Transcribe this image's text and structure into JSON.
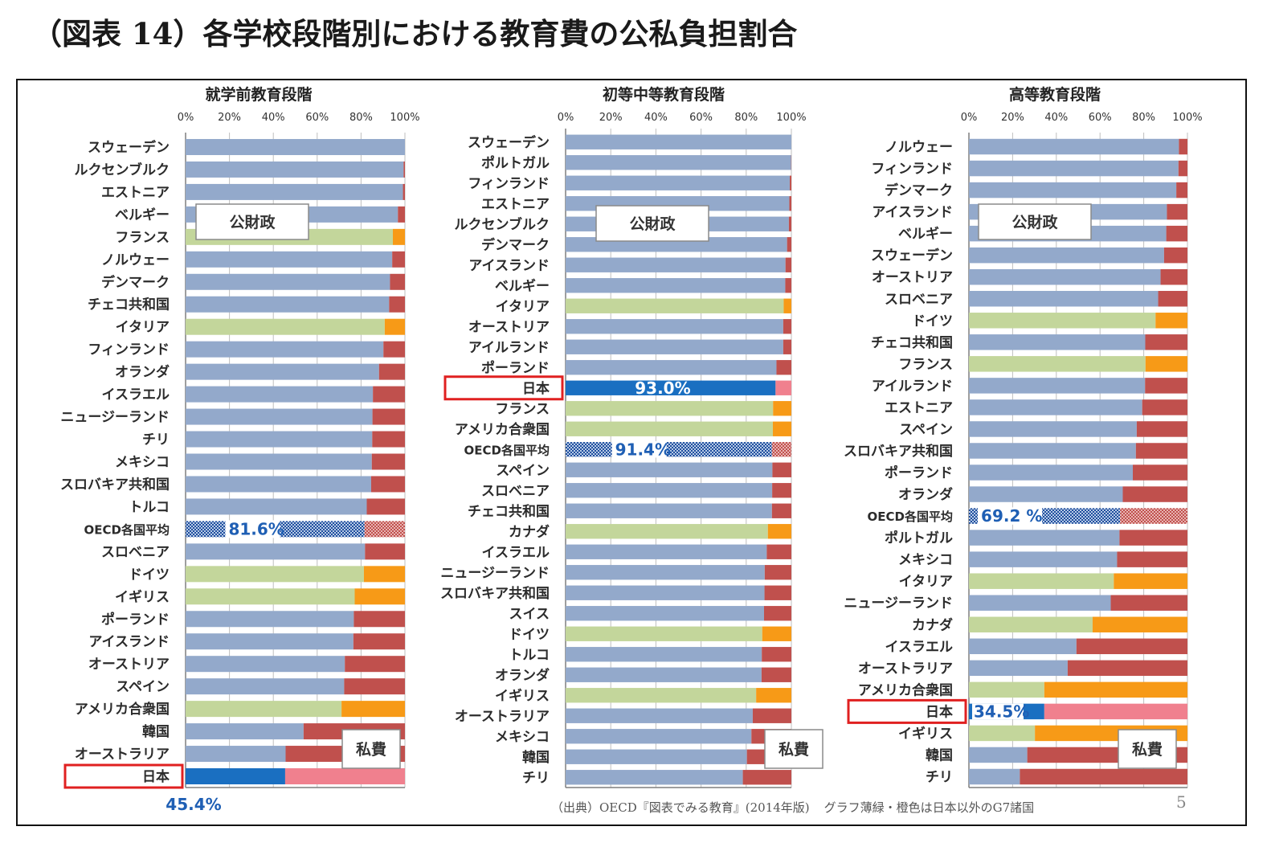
{
  "page_title": "（図表 14）各学校段階別における教育費の公私負担割合",
  "source_note": "（出典）OECD『図表でみる教育』(2014年版)",
  "color_note": "グラフ薄緑・橙色は日本以外のG7諸国",
  "page_number": "5",
  "colors": {
    "public": "#93a9cb",
    "private": "#c0504d",
    "g7_public": "#c3d69b",
    "g7_private": "#f79a17",
    "japan_public": "#1a6fc1",
    "japan_private": "#f0808e",
    "oecd_dots": "#1f4e9e",
    "label_blue": "#1f5fb4",
    "highlight": "#e02020"
  },
  "chart_data": [
    {
      "type": "bar",
      "orientation": "horizontal",
      "stacked": true,
      "title": "就学前教育段階",
      "xlim": [
        0,
        100
      ],
      "xticks": [
        "0%",
        "20%",
        "40%",
        "60%",
        "80%",
        "100%"
      ],
      "public_label": "公財政",
      "private_label": "私費",
      "categories": [
        "スウェーデン",
        "ルクセンブルク",
        "エストニア",
        "ベルギー",
        "フランス",
        "ノルウェー",
        "デンマーク",
        "チェコ共和国",
        "イタリア",
        "フィンランド",
        "オランダ",
        "イスラエル",
        "ニュージーランド",
        "チリ",
        "メキシコ",
        "スロバキア共和国",
        "トルコ",
        "OECD各国平均",
        "スロベニア",
        "ドイツ",
        "イギリス",
        "ポーランド",
        "アイスランド",
        "オーストリア",
        "スペイン",
        "アメリカ合衆国",
        "韓国",
        "オーストラリア",
        "日本"
      ],
      "series": [
        {
          "name": "公財政",
          "values": [
            100,
            99.4,
            99.1,
            96.8,
            94.5,
            94.2,
            93.2,
            92.8,
            90.8,
            90.2,
            88.2,
            85.4,
            85.2,
            85.1,
            84.9,
            84.6,
            82.6,
            81.6,
            81.8,
            81.3,
            77.1,
            76.7,
            76.5,
            72.6,
            72.3,
            71.1,
            53.8,
            45.6,
            45.4
          ]
        },
        {
          "name": "私費",
          "values": [
            0,
            0.6,
            0.9,
            3.2,
            5.5,
            5.8,
            6.8,
            7.2,
            9.2,
            9.8,
            11.8,
            14.6,
            14.8,
            14.9,
            15.1,
            15.4,
            17.4,
            18.4,
            18.2,
            18.7,
            22.9,
            23.3,
            23.5,
            27.4,
            27.7,
            28.9,
            46.2,
            54.4,
            54.6
          ]
        }
      ],
      "g7": [
        "フランス",
        "イタリア",
        "ドイツ",
        "イギリス",
        "アメリカ合衆国"
      ],
      "highlight": {
        "category": "日本",
        "label": "45.4%"
      },
      "oecd_average": {
        "category": "OECD各国平均",
        "label": "81.6%"
      }
    },
    {
      "type": "bar",
      "orientation": "horizontal",
      "stacked": true,
      "title": "初等中等教育段階",
      "xlim": [
        0,
        100
      ],
      "xticks": [
        "0%",
        "20%",
        "40%",
        "60%",
        "80%",
        "100%"
      ],
      "public_label": "公財政",
      "private_label": "私費",
      "categories": [
        "スウェーデン",
        "ポルトガル",
        "フィンランド",
        "エストニア",
        "ルクセンブルク",
        "デンマーク",
        "アイスランド",
        "ベルギー",
        "イタリア",
        "オーストリア",
        "アイルランド",
        "ポーランド",
        "日本",
        "フランス",
        "アメリカ合衆国",
        "OECD各国平均",
        "スペイン",
        "スロベニア",
        "チェコ共和国",
        "カナダ",
        "イスラエル",
        "ニュージーランド",
        "スロバキア共和国",
        "スイス",
        "ドイツ",
        "トルコ",
        "オランダ",
        "イギリス",
        "オーストラリア",
        "メキシコ",
        "韓国",
        "チリ"
      ],
      "series": [
        {
          "name": "公財政",
          "values": [
            100,
            99.9,
            99.3,
            99.1,
            98.9,
            98.1,
            97.4,
            97.3,
            96.6,
            96.4,
            96.4,
            93.4,
            93.0,
            91.9,
            91.8,
            91.4,
            91.6,
            91.5,
            91.4,
            89.6,
            89.1,
            88.2,
            88.1,
            87.9,
            87.1,
            86.9,
            86.8,
            84.4,
            82.9,
            82.3,
            80.3,
            78.5
          ]
        },
        {
          "name": "私費",
          "values": [
            0,
            0.1,
            0.7,
            0.9,
            1.1,
            1.9,
            2.6,
            2.7,
            3.4,
            3.6,
            3.6,
            6.6,
            7.0,
            8.1,
            8.2,
            8.6,
            8.4,
            8.5,
            8.6,
            10.4,
            10.9,
            11.8,
            11.9,
            12.1,
            12.9,
            13.1,
            13.2,
            15.6,
            17.1,
            17.7,
            19.7,
            21.5
          ]
        }
      ],
      "g7": [
        "イタリア",
        "フランス",
        "アメリカ合衆国",
        "カナダ",
        "ドイツ",
        "イギリス"
      ],
      "highlight": {
        "category": "日本",
        "label": "93.0%"
      },
      "oecd_average": {
        "category": "OECD各国平均",
        "label": "91.4%"
      }
    },
    {
      "type": "bar",
      "orientation": "horizontal",
      "stacked": true,
      "title": "高等教育段階",
      "xlim": [
        0,
        100
      ],
      "xticks": [
        "0%",
        "20%",
        "40%",
        "60%",
        "80%",
        "100%"
      ],
      "public_label": "公財政",
      "private_label": "私費",
      "categories": [
        "ノルウェー",
        "フィンランド",
        "デンマーク",
        "アイスランド",
        "ベルギー",
        "スウェーデン",
        "オーストリア",
        "スロベニア",
        "ドイツ",
        "チェコ共和国",
        "フランス",
        "アイルランド",
        "エストニア",
        "スペイン",
        "スロバキア共和国",
        "ポーランド",
        "オランダ",
        "OECD各国平均",
        "ポルトガル",
        "メキシコ",
        "イタリア",
        "ニュージーランド",
        "カナダ",
        "イスラエル",
        "オーストラリア",
        "アメリカ合衆国",
        "日本",
        "イギリス",
        "韓国",
        "チリ"
      ],
      "series": [
        {
          "name": "公財政",
          "values": [
            96.1,
            95.9,
            94.9,
            90.6,
            90.3,
            89.3,
            87.7,
            86.6,
            85.4,
            80.7,
            80.8,
            80.6,
            79.3,
            76.8,
            76.4,
            75.0,
            70.4,
            69.2,
            68.9,
            67.8,
            66.3,
            64.9,
            56.6,
            49.2,
            45.2,
            34.5,
            34.5,
            30.2,
            26.7,
            23.3
          ]
        },
        {
          "name": "私費",
          "values": [
            3.9,
            4.1,
            5.1,
            9.4,
            9.7,
            10.7,
            12.3,
            13.4,
            14.6,
            19.3,
            19.2,
            19.4,
            20.7,
            23.2,
            23.6,
            25.0,
            29.6,
            30.8,
            31.1,
            32.2,
            33.7,
            35.1,
            43.4,
            50.8,
            54.8,
            65.5,
            65.5,
            69.8,
            73.3,
            76.7
          ]
        }
      ],
      "g7": [
        "ドイツ",
        "フランス",
        "イタリア",
        "カナダ",
        "アメリカ合衆国",
        "イギリス"
      ],
      "highlight": {
        "category": "日本",
        "label": "34.5%"
      },
      "oecd_average": {
        "category": "OECD各国平均",
        "label": "69.2 %"
      }
    }
  ]
}
